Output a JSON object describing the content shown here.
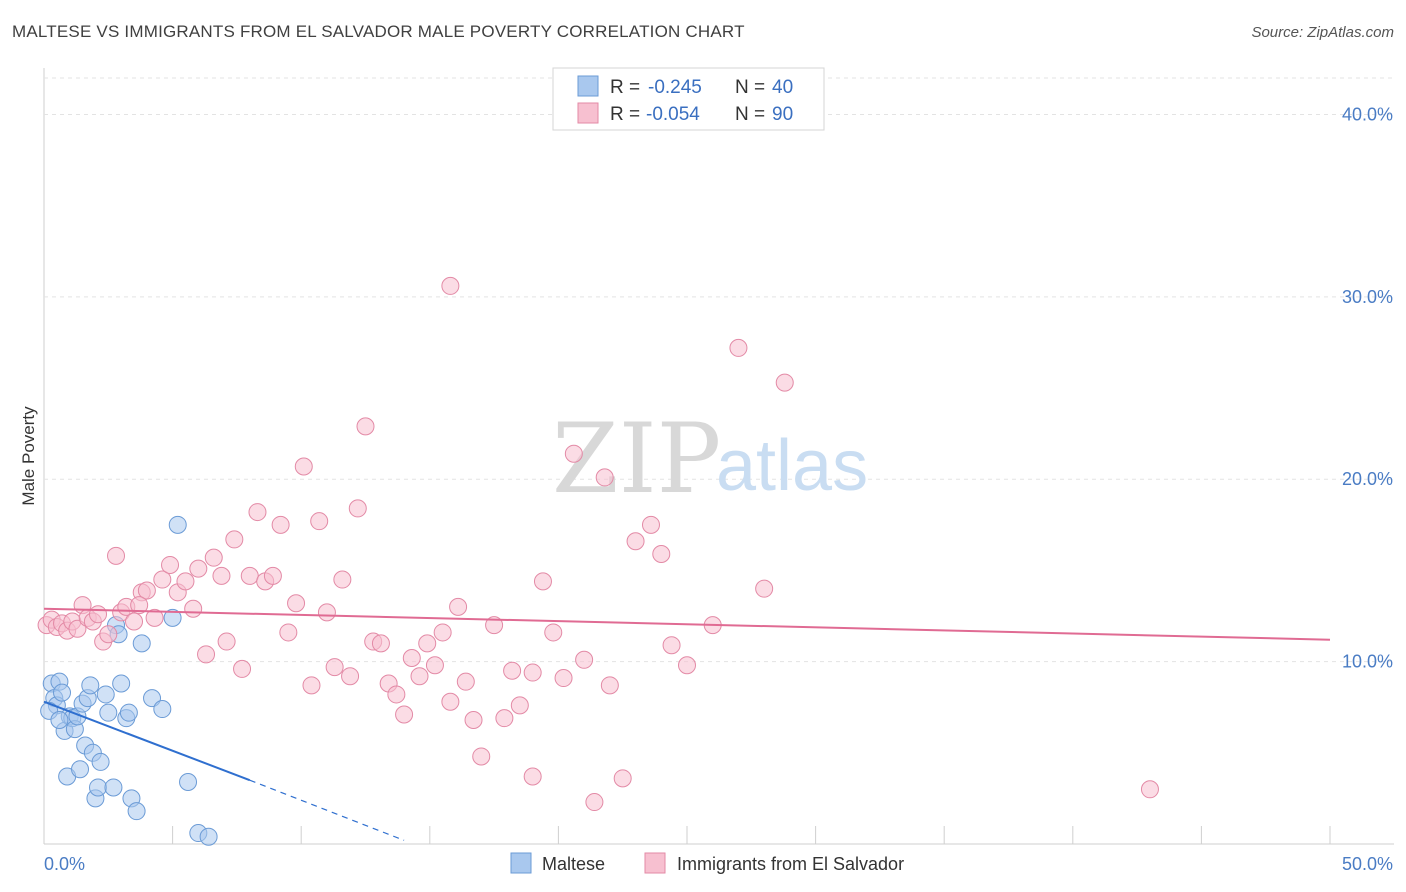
{
  "header": {
    "title": "MALTESE VS IMMIGRANTS FROM EL SALVADOR MALE POVERTY CORRELATION CHART",
    "source": "Source: ZipAtlas.com"
  },
  "watermark": {
    "zip": "ZIP",
    "atlas": "atlas"
  },
  "legend": {
    "rows": [
      {
        "r_label": "R =",
        "r_value": "-0.245",
        "n_label": "N =",
        "n_value": "40",
        "color": "#a9c8ee",
        "stroke": "#6b9bd6"
      },
      {
        "r_label": "R =",
        "r_value": "-0.054",
        "n_label": "N =",
        "n_value": "90",
        "color": "#f7c0d0",
        "stroke": "#e38aa6"
      }
    ]
  },
  "bottom_legend": [
    "Maltese",
    "Immigrants from El Salvador"
  ],
  "chart_data": {
    "type": "scatter",
    "ylabel": "Male Poverty",
    "xlim": [
      0,
      50
    ],
    "ylim": [
      0,
      42
    ],
    "x_ticks": [
      "0.0%",
      "50.0%"
    ],
    "y_ticks": [
      {
        "value": 10,
        "label": "10.0%"
      },
      {
        "value": 20,
        "label": "20.0%"
      },
      {
        "value": 30,
        "label": "30.0%"
      },
      {
        "value": 40,
        "label": "40.0%"
      }
    ],
    "grid": true,
    "series": [
      {
        "name": "Maltese",
        "color": "#a9c8ee",
        "stroke": "#6b9bd6",
        "trend_color": "#2f6fcf",
        "trend": {
          "x0": 0,
          "y0": 7.8,
          "x1": 8.0,
          "y1": 3.5,
          "dash_to_x": 14.0,
          "dash_to_y": 0.2
        },
        "points": [
          [
            0.3,
            8.8
          ],
          [
            0.4,
            8.0
          ],
          [
            0.5,
            7.6
          ],
          [
            0.6,
            8.9
          ],
          [
            0.7,
            8.3
          ],
          [
            0.8,
            6.2
          ],
          [
            0.9,
            3.7
          ],
          [
            1.0,
            7.0
          ],
          [
            1.1,
            6.9
          ],
          [
            1.2,
            6.3
          ],
          [
            1.3,
            7.0
          ],
          [
            1.4,
            4.1
          ],
          [
            1.5,
            7.7
          ],
          [
            1.6,
            5.4
          ],
          [
            1.7,
            8.0
          ],
          [
            1.8,
            8.7
          ],
          [
            1.9,
            5.0
          ],
          [
            2.0,
            2.5
          ],
          [
            2.1,
            3.1
          ],
          [
            2.2,
            4.5
          ],
          [
            2.4,
            8.2
          ],
          [
            2.5,
            7.2
          ],
          [
            2.7,
            3.1
          ],
          [
            2.8,
            12.0
          ],
          [
            2.9,
            11.5
          ],
          [
            3.0,
            8.8
          ],
          [
            3.2,
            6.9
          ],
          [
            3.4,
            2.5
          ],
          [
            3.6,
            1.8
          ],
          [
            3.8,
            11.0
          ],
          [
            4.2,
            8.0
          ],
          [
            4.6,
            7.4
          ],
          [
            5.0,
            12.4
          ],
          [
            5.2,
            17.5
          ],
          [
            5.6,
            3.4
          ],
          [
            6.0,
            0.6
          ],
          [
            6.4,
            0.4
          ],
          [
            0.2,
            7.3
          ],
          [
            0.6,
            6.8
          ],
          [
            3.3,
            7.2
          ]
        ]
      },
      {
        "name": "Immigrants from El Salvador",
        "color": "#f7c0d0",
        "stroke": "#e38aa6",
        "trend_color": "#e06b93",
        "trend": {
          "x0": 0,
          "y0": 12.9,
          "x1": 50,
          "y1": 11.2
        },
        "points": [
          [
            0.1,
            12.0
          ],
          [
            0.3,
            12.3
          ],
          [
            0.5,
            11.9
          ],
          [
            0.7,
            12.1
          ],
          [
            0.9,
            11.7
          ],
          [
            1.1,
            12.2
          ],
          [
            1.3,
            11.8
          ],
          [
            1.5,
            13.1
          ],
          [
            1.7,
            12.4
          ],
          [
            1.9,
            12.2
          ],
          [
            2.1,
            12.6
          ],
          [
            2.3,
            11.1
          ],
          [
            2.5,
            11.5
          ],
          [
            2.8,
            15.8
          ],
          [
            3.0,
            12.7
          ],
          [
            3.2,
            13.0
          ],
          [
            3.5,
            12.2
          ],
          [
            3.8,
            13.8
          ],
          [
            4.0,
            13.9
          ],
          [
            4.3,
            12.4
          ],
          [
            4.6,
            14.5
          ],
          [
            4.9,
            15.3
          ],
          [
            5.2,
            13.8
          ],
          [
            5.5,
            14.4
          ],
          [
            5.8,
            12.9
          ],
          [
            6.0,
            15.1
          ],
          [
            6.3,
            10.4
          ],
          [
            6.6,
            15.7
          ],
          [
            6.9,
            14.7
          ],
          [
            7.1,
            11.1
          ],
          [
            7.4,
            16.7
          ],
          [
            7.7,
            9.6
          ],
          [
            8.0,
            14.7
          ],
          [
            8.3,
            18.2
          ],
          [
            8.6,
            14.4
          ],
          [
            8.9,
            14.7
          ],
          [
            9.2,
            17.5
          ],
          [
            9.5,
            11.6
          ],
          [
            9.8,
            13.2
          ],
          [
            10.1,
            20.7
          ],
          [
            10.4,
            8.7
          ],
          [
            10.7,
            17.7
          ],
          [
            11.0,
            12.7
          ],
          [
            11.3,
            9.7
          ],
          [
            11.6,
            14.5
          ],
          [
            11.9,
            9.2
          ],
          [
            12.2,
            18.4
          ],
          [
            12.5,
            22.9
          ],
          [
            12.8,
            11.1
          ],
          [
            13.1,
            11.0
          ],
          [
            13.4,
            8.8
          ],
          [
            13.7,
            8.2
          ],
          [
            14.0,
            7.1
          ],
          [
            14.3,
            10.2
          ],
          [
            14.6,
            9.2
          ],
          [
            14.9,
            11.0
          ],
          [
            15.2,
            9.8
          ],
          [
            15.5,
            11.6
          ],
          [
            15.8,
            7.8
          ],
          [
            16.1,
            13.0
          ],
          [
            16.4,
            8.9
          ],
          [
            16.7,
            6.8
          ],
          [
            17.0,
            4.8
          ],
          [
            17.5,
            12.0
          ],
          [
            17.9,
            6.9
          ],
          [
            18.2,
            9.5
          ],
          [
            18.5,
            7.6
          ],
          [
            19.0,
            3.7
          ],
          [
            19.4,
            14.4
          ],
          [
            19.8,
            11.6
          ],
          [
            20.2,
            9.1
          ],
          [
            20.6,
            21.4
          ],
          [
            21.0,
            10.1
          ],
          [
            21.4,
            2.3
          ],
          [
            21.8,
            20.1
          ],
          [
            22.5,
            3.6
          ],
          [
            23.0,
            16.6
          ],
          [
            23.6,
            17.5
          ],
          [
            24.0,
            15.9
          ],
          [
            24.4,
            10.9
          ],
          [
            25.0,
            9.8
          ],
          [
            26.0,
            12.0
          ],
          [
            27.0,
            27.2
          ],
          [
            28.0,
            14.0
          ],
          [
            28.8,
            25.3
          ],
          [
            15.8,
            30.6
          ],
          [
            22.0,
            8.7
          ],
          [
            19.0,
            9.4
          ],
          [
            43.0,
            3.0
          ],
          [
            3.7,
            13.1
          ]
        ]
      }
    ]
  }
}
